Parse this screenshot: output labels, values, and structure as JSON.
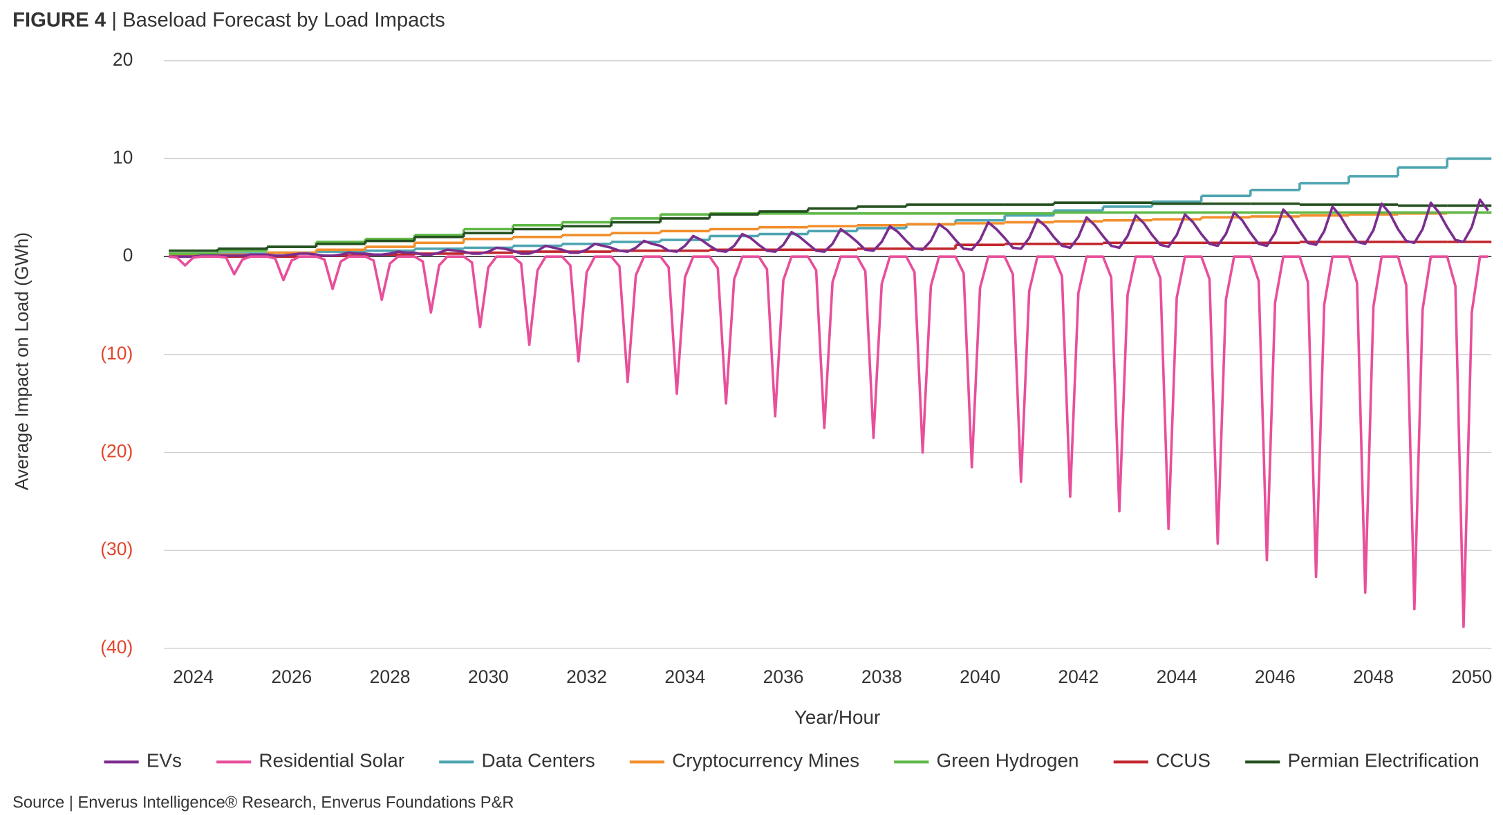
{
  "chart_data": {
    "type": "line",
    "figure_label": "FIGURE 4",
    "title": "| Baseload Forecast by Load Impacts",
    "x_label": "Year/Hour",
    "y_label": "Average Impact on Load (GWh)",
    "source": "Source | Enverus Intelligence® Research, Enverus Foundations P&R",
    "xlim": [
      2023.4,
      2050.4
    ],
    "xticks": [
      2024,
      2026,
      2028,
      2030,
      2032,
      2034,
      2036,
      2038,
      2040,
      2042,
      2044,
      2046,
      2048,
      2050
    ],
    "ylim": [
      -40,
      20
    ],
    "yticks": [
      {
        "value": -40,
        "label": "(40)"
      },
      {
        "value": -30,
        "label": "(30)"
      },
      {
        "value": -20,
        "label": "(20)"
      },
      {
        "value": -10,
        "label": "(10)"
      },
      0,
      10,
      20
    ],
    "negative_tick_label_color": "#e2452b",
    "grid": true,
    "zero_line": true,
    "legend": "bottom",
    "x": [
      2023.5,
      2023.667,
      2023.833,
      2024,
      2024.167,
      2024.333,
      2024.5,
      2024.667,
      2024.833,
      2025,
      2025.167,
      2025.333,
      2025.5,
      2025.667,
      2025.833,
      2026,
      2026.167,
      2026.333,
      2026.5,
      2026.667,
      2026.833,
      2027,
      2027.167,
      2027.333,
      2027.5,
      2027.667,
      2027.833,
      2028,
      2028.167,
      2028.333,
      2028.5,
      2028.667,
      2028.833,
      2029,
      2029.167,
      2029.333,
      2029.5,
      2029.667,
      2029.833,
      2030,
      2030.167,
      2030.333,
      2030.5,
      2030.667,
      2030.833,
      2031,
      2031.167,
      2031.333,
      2031.5,
      2031.667,
      2031.833,
      2032,
      2032.167,
      2032.333,
      2032.5,
      2032.667,
      2032.833,
      2033,
      2033.167,
      2033.333,
      2033.5,
      2033.667,
      2033.833,
      2034,
      2034.167,
      2034.333,
      2034.5,
      2034.667,
      2034.833,
      2035,
      2035.167,
      2035.333,
      2035.5,
      2035.667,
      2035.833,
      2036,
      2036.167,
      2036.333,
      2036.5,
      2036.667,
      2036.833,
      2037,
      2037.167,
      2037.333,
      2037.5,
      2037.667,
      2037.833,
      2038,
      2038.167,
      2038.333,
      2038.5,
      2038.667,
      2038.833,
      2039,
      2039.167,
      2039.333,
      2039.5,
      2039.667,
      2039.833,
      2040,
      2040.167,
      2040.333,
      2040.5,
      2040.667,
      2040.833,
      2041,
      2041.167,
      2041.333,
      2041.5,
      2041.667,
      2041.833,
      2042,
      2042.167,
      2042.333,
      2042.5,
      2042.667,
      2042.833,
      2043,
      2043.167,
      2043.333,
      2043.5,
      2043.667,
      2043.833,
      2044,
      2044.167,
      2044.333,
      2044.5,
      2044.667,
      2044.833,
      2045,
      2045.167,
      2045.333,
      2045.5,
      2045.667,
      2045.833,
      2046,
      2046.167,
      2046.333,
      2046.5,
      2046.667,
      2046.833,
      2047,
      2047.167,
      2047.333,
      2047.5,
      2047.667,
      2047.833,
      2048,
      2048.167,
      2048.333,
      2048.5,
      2048.667,
      2048.833,
      2049,
      2049.167,
      2049.333,
      2049.5,
      2049.667,
      2049.833,
      2050,
      2050.167,
      2050.333
    ],
    "series": [
      {
        "name": "EVs",
        "color": "#7b2d8e",
        "values": [
          0.0,
          0.0,
          0.0,
          0.0,
          0.1,
          0.1,
          0.1,
          0.1,
          0.1,
          0.1,
          0.2,
          0.2,
          0.2,
          0.1,
          0.1,
          0.2,
          0.3,
          0.3,
          0.2,
          0.1,
          0.1,
          0.2,
          0.4,
          0.3,
          0.3,
          0.2,
          0.2,
          0.3,
          0.5,
          0.4,
          0.4,
          0.2,
          0.2,
          0.4,
          0.7,
          0.6,
          0.5,
          0.3,
          0.3,
          0.5,
          0.9,
          0.8,
          0.6,
          0.3,
          0.3,
          0.6,
          1.1,
          0.9,
          0.7,
          0.4,
          0.4,
          0.7,
          1.3,
          1.1,
          0.9,
          0.6,
          0.5,
          0.9,
          1.6,
          1.3,
          1.1,
          0.6,
          0.5,
          1.1,
          2.1,
          1.7,
          1.1,
          0.6,
          0.5,
          1.1,
          2.3,
          1.9,
          1.2,
          0.6,
          0.5,
          1.2,
          2.5,
          2.0,
          1.3,
          0.6,
          0.5,
          1.3,
          2.8,
          2.2,
          1.5,
          0.7,
          0.6,
          1.5,
          3.1,
          2.5,
          1.6,
          0.8,
          0.7,
          1.6,
          3.3,
          2.7,
          1.7,
          0.8,
          0.7,
          1.7,
          3.5,
          2.8,
          1.9,
          0.9,
          0.8,
          1.9,
          3.8,
          3.1,
          2.0,
          1.1,
          0.9,
          2.0,
          4.0,
          3.2,
          2.1,
          1.1,
          0.9,
          2.1,
          4.2,
          3.4,
          2.2,
          1.2,
          1.0,
          2.2,
          4.3,
          3.5,
          2.3,
          1.3,
          1.1,
          2.3,
          4.5,
          3.7,
          2.4,
          1.3,
          1.1,
          2.4,
          4.8,
          3.9,
          2.6,
          1.4,
          1.2,
          2.6,
          5.1,
          4.1,
          2.7,
          1.5,
          1.3,
          2.7,
          5.4,
          4.4,
          2.8,
          1.6,
          1.4,
          2.8,
          5.5,
          4.5,
          3.0,
          1.7,
          1.5,
          3.0,
          5.8,
          4.7
        ]
      },
      {
        "name": "Residential Solar",
        "color": "#e84f9b",
        "values": [
          0,
          -0.1,
          -0.9,
          -0.1,
          0,
          0,
          0,
          -0.1,
          -1.8,
          -0.3,
          0,
          0,
          0,
          -0.2,
          -2.4,
          -0.4,
          0,
          0,
          0,
          -0.3,
          -3.3,
          -0.5,
          0,
          0,
          0,
          -0.4,
          -4.4,
          -0.7,
          0,
          0,
          0,
          -0.5,
          -5.7,
          -0.9,
          0,
          0,
          0,
          -0.6,
          -7.2,
          -1.1,
          0,
          0,
          0,
          -0.7,
          -9.0,
          -1.4,
          0,
          0,
          0,
          -0.9,
          -10.7,
          -1.6,
          0,
          0,
          0,
          -1.0,
          -12.8,
          -1.9,
          0,
          0,
          0,
          -1.1,
          -14.0,
          -2.1,
          0,
          0,
          0,
          -1.2,
          -15.0,
          -2.3,
          0,
          0,
          0,
          -1.3,
          -16.3,
          -2.4,
          0,
          0,
          0,
          -1.4,
          -17.5,
          -2.6,
          0,
          0,
          0,
          -1.5,
          -18.5,
          -2.8,
          0,
          0,
          0,
          -1.6,
          -20.0,
          -3.0,
          0,
          0,
          0,
          -1.7,
          -21.5,
          -3.2,
          0,
          0,
          0,
          -1.8,
          -23.0,
          -3.5,
          0,
          0,
          0,
          -2.0,
          -24.5,
          -3.7,
          0,
          0,
          0,
          -2.1,
          -26.0,
          -3.9,
          0,
          0,
          0,
          -2.2,
          -27.8,
          -4.2,
          0,
          0,
          0,
          -2.3,
          -29.3,
          -4.4,
          0,
          0,
          0,
          -2.5,
          -31.0,
          -4.7,
          0,
          0,
          0,
          -2.6,
          -32.7,
          -4.9,
          0,
          0,
          0,
          -2.7,
          -34.3,
          -5.1,
          0,
          0,
          0,
          -2.9,
          -36.0,
          -5.4,
          0,
          0,
          0,
          -3.0,
          -37.8,
          -5.7,
          0,
          0
        ]
      },
      {
        "name": "Data Centers",
        "color": "#4ea5b0",
        "step": true,
        "x": [
          2023.5,
          2024.5,
          2025.5,
          2026.5,
          2027.5,
          2028.5,
          2029.5,
          2030.5,
          2031.5,
          2032.5,
          2033.5,
          2034.5,
          2035.5,
          2036.5,
          2037.5,
          2038.5,
          2039.5,
          2040.5,
          2041.5,
          2042.5,
          2043.5,
          2044.5,
          2045.5,
          2046.5,
          2047.5,
          2048.5,
          2049.5
        ],
        "values": [
          0.2,
          0.3,
          0.4,
          0.5,
          0.6,
          0.8,
          0.9,
          1.1,
          1.3,
          1.5,
          1.7,
          2.1,
          2.3,
          2.6,
          2.9,
          3.3,
          3.7,
          4.2,
          4.7,
          5.1,
          5.6,
          6.2,
          6.8,
          7.5,
          8.2,
          9.1,
          10.0
        ]
      },
      {
        "name": "Cryptocurrency Mines",
        "color": "#f28e2b",
        "step": true,
        "x": [
          2023.5,
          2024.5,
          2025.5,
          2026.5,
          2027.5,
          2028.5,
          2029.5,
          2030.5,
          2031.5,
          2032.5,
          2033.5,
          2034.5,
          2035.5,
          2036.5,
          2037.5,
          2038.5,
          2039.5,
          2040.5,
          2041.5,
          2042.5,
          2043.5,
          2044.5,
          2045.5,
          2046.5,
          2047.5,
          2048.5,
          2049.5
        ],
        "values": [
          0.1,
          0.2,
          0.4,
          0.7,
          1.0,
          1.4,
          1.8,
          2.0,
          2.2,
          2.4,
          2.6,
          2.8,
          3.0,
          3.1,
          3.2,
          3.3,
          3.4,
          3.5,
          3.6,
          3.7,
          3.8,
          4.0,
          4.1,
          4.2,
          4.3,
          4.4,
          4.5
        ]
      },
      {
        "name": "Green Hydrogen",
        "color": "#5fb847",
        "step": true,
        "x": [
          2023.5,
          2024.5,
          2025.5,
          2026.5,
          2027.5,
          2028.5,
          2029.5,
          2030.5,
          2031.5,
          2032.5,
          2033.5,
          2034.5,
          2035.5,
          2036.5,
          2037.5,
          2038.5,
          2039.5,
          2040.5,
          2041.5,
          2042.5,
          2043.5,
          2044.5,
          2045.5,
          2046.5,
          2047.5,
          2048.5,
          2049.5
        ],
        "values": [
          0.3,
          0.6,
          1.0,
          1.5,
          1.8,
          2.2,
          2.8,
          3.2,
          3.5,
          3.9,
          4.3,
          4.4,
          4.4,
          4.4,
          4.4,
          4.4,
          4.4,
          4.4,
          4.5,
          4.5,
          4.5,
          4.5,
          4.5,
          4.5,
          4.5,
          4.5,
          4.5
        ]
      },
      {
        "name": "CCUS",
        "color": "#c1272d",
        "step": true,
        "x": [
          2023.5,
          2024.5,
          2025.5,
          2026.5,
          2027.5,
          2028.5,
          2029.5,
          2030.5,
          2031.5,
          2032.5,
          2033.5,
          2034.5,
          2035.5,
          2036.5,
          2037.5,
          2038.5,
          2039.5,
          2040.5,
          2041.5,
          2042.5,
          2043.5,
          2044.5,
          2045.5,
          2046.5,
          2047.5,
          2048.5,
          2049.5
        ],
        "values": [
          0,
          0,
          0,
          0.1,
          0.2,
          0.3,
          0.4,
          0.5,
          0.5,
          0.6,
          0.6,
          0.7,
          0.7,
          0.7,
          0.8,
          0.8,
          1.2,
          1.3,
          1.3,
          1.4,
          1.4,
          1.4,
          1.4,
          1.5,
          1.5,
          1.5,
          1.5
        ]
      },
      {
        "name": "Permian Electrification",
        "color": "#24501f",
        "step": true,
        "x": [
          2023.5,
          2024.5,
          2025.5,
          2026.5,
          2027.5,
          2028.5,
          2029.5,
          2030.5,
          2031.5,
          2032.5,
          2033.5,
          2034.5,
          2035.5,
          2036.5,
          2037.5,
          2038.5,
          2039.5,
          2040.5,
          2041.5,
          2042.5,
          2043.5,
          2044.5,
          2045.5,
          2046.5,
          2047.5,
          2048.5,
          2049.5
        ],
        "values": [
          0.6,
          0.8,
          1.0,
          1.3,
          1.6,
          2.0,
          2.4,
          2.8,
          3.1,
          3.5,
          3.9,
          4.3,
          4.6,
          4.9,
          5.1,
          5.3,
          5.3,
          5.3,
          5.5,
          5.5,
          5.4,
          5.4,
          5.4,
          5.3,
          5.3,
          5.2,
          5.2
        ]
      }
    ]
  }
}
